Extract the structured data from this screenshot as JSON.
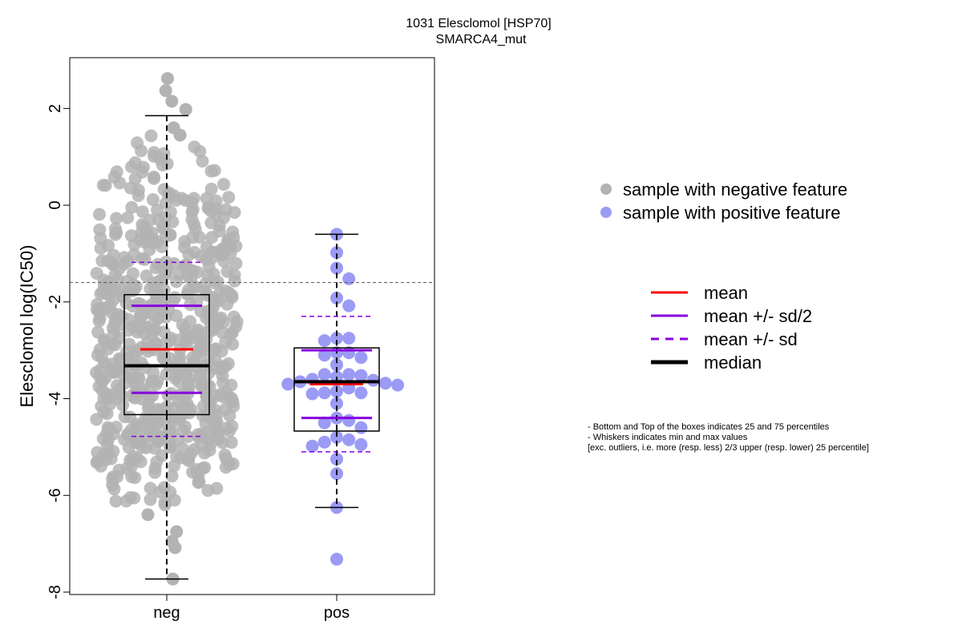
{
  "chart_data": {
    "type": "box-beeswarm",
    "title": "1031 Elesclomol [HSP70]",
    "subtitle": "SMARCA4_mut",
    "ylabel": "Elesclomol log(IC50)",
    "xlabel": "",
    "ylim": [
      -8.05,
      3.05
    ],
    "yticks": [
      "2",
      "0",
      "-2",
      "-4",
      "-6",
      "-8"
    ],
    "ytick_values": [
      2,
      0,
      -2,
      -4,
      -6,
      -8
    ],
    "categories": [
      "neg",
      "pos"
    ],
    "threshold_y": -1.6,
    "colors": {
      "neg": "#b3b3b3",
      "pos": "#9b9bf5",
      "mean": "#ff0000",
      "sd": "#8800dd",
      "median": "#000000"
    },
    "groups": [
      {
        "name": "neg",
        "median": -3.32,
        "q1": -4.33,
        "q3": -1.85,
        "whisker_low": -7.73,
        "whisker_high": 1.85,
        "mean": -2.98,
        "mean_sd2_low": -3.88,
        "mean_sd2_high": -2.08,
        "mean_sd_low": -4.78,
        "mean_sd_high": -1.18,
        "n_points": 780,
        "sample_points": [
          2.62,
          2.37,
          2.15,
          1.98,
          1.6,
          1.45,
          1.3,
          1.1,
          0.82,
          0.65,
          0.4,
          -0.1,
          -0.6,
          -1.2,
          -1.8,
          -2.4,
          -3.0,
          -3.6,
          -4.2,
          -4.8,
          -5.4,
          -6.0,
          -6.4,
          -6.75,
          -6.95,
          -7.08,
          -7.73
        ]
      },
      {
        "name": "pos",
        "median": -3.65,
        "q1": -4.67,
        "q3": -2.95,
        "whisker_low": -6.25,
        "whisker_high": -0.6,
        "mean": -3.7,
        "mean_sd2_low": -4.4,
        "mean_sd2_high": -3.0,
        "mean_sd_low": -5.1,
        "mean_sd_high": -2.3,
        "points": [
          -0.6,
          -0.98,
          -1.3,
          -1.52,
          -1.92,
          -2.08,
          -2.75,
          -2.75,
          -2.8,
          -3.05,
          -3.05,
          -3.1,
          -3.15,
          -3.3,
          -3.5,
          -3.5,
          -3.52,
          -3.55,
          -3.6,
          -3.62,
          -3.65,
          -3.68,
          -3.7,
          -3.72,
          -3.78,
          -3.85,
          -3.88,
          -3.88,
          -3.9,
          -4.1,
          -4.4,
          -4.45,
          -4.5,
          -4.6,
          -4.8,
          -4.85,
          -4.9,
          -4.95,
          -4.98,
          -5.25,
          -5.55,
          -6.25,
          -7.32
        ]
      }
    ],
    "legend": {
      "position": "right",
      "points": [
        {
          "label": "sample with negative feature",
          "color": "#b3b3b3"
        },
        {
          "label": "sample with positive feature",
          "color": "#9b9bf5"
        }
      ],
      "lines": [
        {
          "label": "mean",
          "color": "#ff0000",
          "style": "solid"
        },
        {
          "label": "mean +/- sd/2",
          "color": "#8800dd",
          "style": "solid"
        },
        {
          "label": "mean +/- sd",
          "color": "#8800dd",
          "style": "dashed"
        },
        {
          "label": "median",
          "color": "#000000",
          "style": "bold"
        }
      ]
    },
    "notes": [
      "- Bottom and Top of the boxes indicates 25 and 75 percentiles",
      "- Whiskers indicates min and max values",
      "[exc. outliers, i.e. more (resp. less) 2/3 upper (resp. lower) 25 percentile]"
    ]
  }
}
